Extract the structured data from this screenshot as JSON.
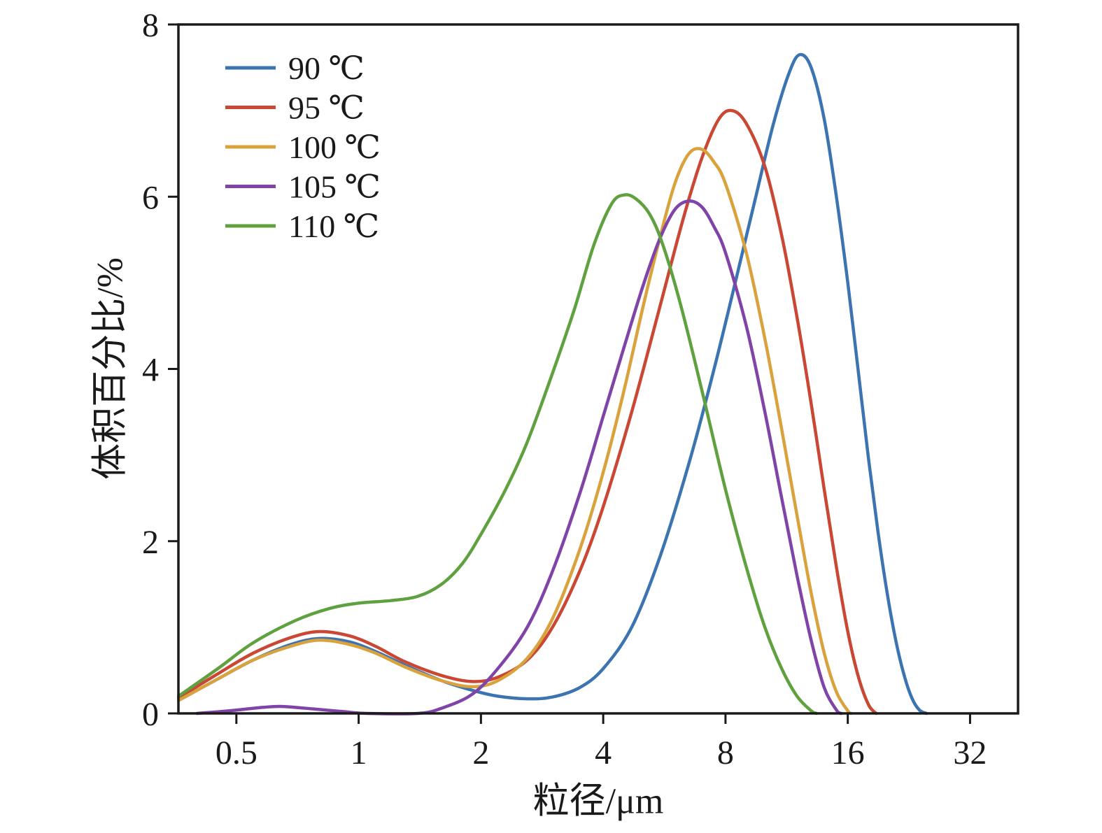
{
  "chart_data": {
    "type": "line",
    "title": "",
    "xlabel": "粒径/μm",
    "ylabel": "体积百分比/%",
    "x_scale": "log2",
    "x_domain": [
      0.36,
      42
    ],
    "y_domain": [
      0,
      8
    ],
    "x_ticks": [
      0.5,
      1,
      2,
      4,
      8,
      16,
      32
    ],
    "x_tick_labels": [
      "0.5",
      "1",
      "2",
      "4",
      "8",
      "16",
      "32"
    ],
    "y_ticks": [
      0,
      2,
      4,
      6,
      8
    ],
    "y_tick_labels": [
      "0",
      "2",
      "4",
      "6",
      "8"
    ],
    "grid": false,
    "legend_position": "top-left",
    "frame_color": "#1a1a1a",
    "series": [
      {
        "name": "90 ℃",
        "color": "#3b74b0",
        "points": [
          [
            0.36,
            0.15
          ],
          [
            0.45,
            0.4
          ],
          [
            0.55,
            0.62
          ],
          [
            0.68,
            0.8
          ],
          [
            0.8,
            0.87
          ],
          [
            0.95,
            0.83
          ],
          [
            1.1,
            0.72
          ],
          [
            1.3,
            0.56
          ],
          [
            1.6,
            0.38
          ],
          [
            1.9,
            0.27
          ],
          [
            2.2,
            0.2
          ],
          [
            2.6,
            0.17
          ],
          [
            3.0,
            0.19
          ],
          [
            3.5,
            0.3
          ],
          [
            4.0,
            0.52
          ],
          [
            4.7,
            1.0
          ],
          [
            5.5,
            1.8
          ],
          [
            6.5,
            2.9
          ],
          [
            7.5,
            4.0
          ],
          [
            8.5,
            5.05
          ],
          [
            9.5,
            6.0
          ],
          [
            10.5,
            6.85
          ],
          [
            11.5,
            7.45
          ],
          [
            12.2,
            7.65
          ],
          [
            13.0,
            7.5
          ],
          [
            14.0,
            6.9
          ],
          [
            15.0,
            6.0
          ],
          [
            16.0,
            5.0
          ],
          [
            17.0,
            3.95
          ],
          [
            18.0,
            2.95
          ],
          [
            19.0,
            2.1
          ],
          [
            20.0,
            1.4
          ],
          [
            21.0,
            0.85
          ],
          [
            22.0,
            0.45
          ],
          [
            23.0,
            0.18
          ],
          [
            24.0,
            0.04
          ],
          [
            25.0,
            0.0
          ]
        ]
      },
      {
        "name": "95 ℃",
        "color": "#c94733",
        "points": [
          [
            0.36,
            0.18
          ],
          [
            0.45,
            0.46
          ],
          [
            0.55,
            0.7
          ],
          [
            0.68,
            0.88
          ],
          [
            0.8,
            0.95
          ],
          [
            0.95,
            0.9
          ],
          [
            1.1,
            0.78
          ],
          [
            1.3,
            0.6
          ],
          [
            1.6,
            0.44
          ],
          [
            1.9,
            0.37
          ],
          [
            2.2,
            0.42
          ],
          [
            2.6,
            0.62
          ],
          [
            3.0,
            1.0
          ],
          [
            3.5,
            1.65
          ],
          [
            4.0,
            2.4
          ],
          [
            4.7,
            3.5
          ],
          [
            5.5,
            4.7
          ],
          [
            6.3,
            5.75
          ],
          [
            7.0,
            6.45
          ],
          [
            7.7,
            6.9
          ],
          [
            8.3,
            7.0
          ],
          [
            9.0,
            6.85
          ],
          [
            10.0,
            6.35
          ],
          [
            11.0,
            5.55
          ],
          [
            12.0,
            4.6
          ],
          [
            13.0,
            3.6
          ],
          [
            14.0,
            2.6
          ],
          [
            15.0,
            1.7
          ],
          [
            16.0,
            0.95
          ],
          [
            17.0,
            0.42
          ],
          [
            18.0,
            0.1
          ],
          [
            18.8,
            0.0
          ]
        ]
      },
      {
        "name": "100 ℃",
        "color": "#d9a23d",
        "points": [
          [
            0.36,
            0.15
          ],
          [
            0.45,
            0.4
          ],
          [
            0.55,
            0.62
          ],
          [
            0.68,
            0.78
          ],
          [
            0.8,
            0.85
          ],
          [
            0.95,
            0.8
          ],
          [
            1.1,
            0.7
          ],
          [
            1.3,
            0.54
          ],
          [
            1.6,
            0.38
          ],
          [
            1.9,
            0.31
          ],
          [
            2.2,
            0.38
          ],
          [
            2.6,
            0.64
          ],
          [
            3.0,
            1.1
          ],
          [
            3.5,
            1.9
          ],
          [
            4.0,
            2.8
          ],
          [
            4.5,
            3.75
          ],
          [
            5.0,
            4.7
          ],
          [
            5.5,
            5.5
          ],
          [
            6.0,
            6.15
          ],
          [
            6.5,
            6.5
          ],
          [
            7.0,
            6.55
          ],
          [
            7.5,
            6.4
          ],
          [
            8.0,
            6.15
          ],
          [
            9.0,
            5.35
          ],
          [
            10.0,
            4.35
          ],
          [
            11.0,
            3.3
          ],
          [
            12.0,
            2.3
          ],
          [
            13.0,
            1.4
          ],
          [
            14.0,
            0.7
          ],
          [
            15.0,
            0.25
          ],
          [
            16.0,
            0.03
          ],
          [
            16.3,
            0.0
          ]
        ]
      },
      {
        "name": "105 ℃",
        "color": "#8044a8",
        "points": [
          [
            0.4,
            0.0
          ],
          [
            0.48,
            0.03
          ],
          [
            0.58,
            0.07
          ],
          [
            0.65,
            0.08
          ],
          [
            0.78,
            0.05
          ],
          [
            0.92,
            0.02
          ],
          [
            1.05,
            0.0
          ],
          [
            1.4,
            0.0
          ],
          [
            1.6,
            0.06
          ],
          [
            1.9,
            0.22
          ],
          [
            2.2,
            0.52
          ],
          [
            2.6,
            1.0
          ],
          [
            3.0,
            1.65
          ],
          [
            3.5,
            2.55
          ],
          [
            4.0,
            3.45
          ],
          [
            4.5,
            4.25
          ],
          [
            5.0,
            4.95
          ],
          [
            5.5,
            5.5
          ],
          [
            6.0,
            5.85
          ],
          [
            6.5,
            5.95
          ],
          [
            7.0,
            5.88
          ],
          [
            7.5,
            5.65
          ],
          [
            8.0,
            5.35
          ],
          [
            9.0,
            4.5
          ],
          [
            10.0,
            3.5
          ],
          [
            11.0,
            2.5
          ],
          [
            12.0,
            1.6
          ],
          [
            13.0,
            0.85
          ],
          [
            14.0,
            0.3
          ],
          [
            15.0,
            0.04
          ],
          [
            15.4,
            0.0
          ]
        ]
      },
      {
        "name": "110 ℃",
        "color": "#5fa13f",
        "points": [
          [
            0.36,
            0.2
          ],
          [
            0.45,
            0.52
          ],
          [
            0.55,
            0.82
          ],
          [
            0.7,
            1.08
          ],
          [
            0.85,
            1.22
          ],
          [
            1.0,
            1.28
          ],
          [
            1.2,
            1.31
          ],
          [
            1.4,
            1.36
          ],
          [
            1.6,
            1.5
          ],
          [
            1.8,
            1.74
          ],
          [
            2.0,
            2.08
          ],
          [
            2.3,
            2.6
          ],
          [
            2.6,
            3.15
          ],
          [
            3.0,
            3.95
          ],
          [
            3.4,
            4.7
          ],
          [
            3.8,
            5.45
          ],
          [
            4.2,
            5.92
          ],
          [
            4.5,
            6.02
          ],
          [
            4.8,
            5.98
          ],
          [
            5.2,
            5.8
          ],
          [
            5.6,
            5.45
          ],
          [
            6.2,
            4.75
          ],
          [
            7.0,
            3.75
          ],
          [
            8.0,
            2.6
          ],
          [
            9.0,
            1.7
          ],
          [
            10.0,
            1.0
          ],
          [
            11.0,
            0.52
          ],
          [
            12.0,
            0.2
          ],
          [
            13.0,
            0.03
          ],
          [
            13.4,
            0.0
          ]
        ]
      }
    ]
  }
}
